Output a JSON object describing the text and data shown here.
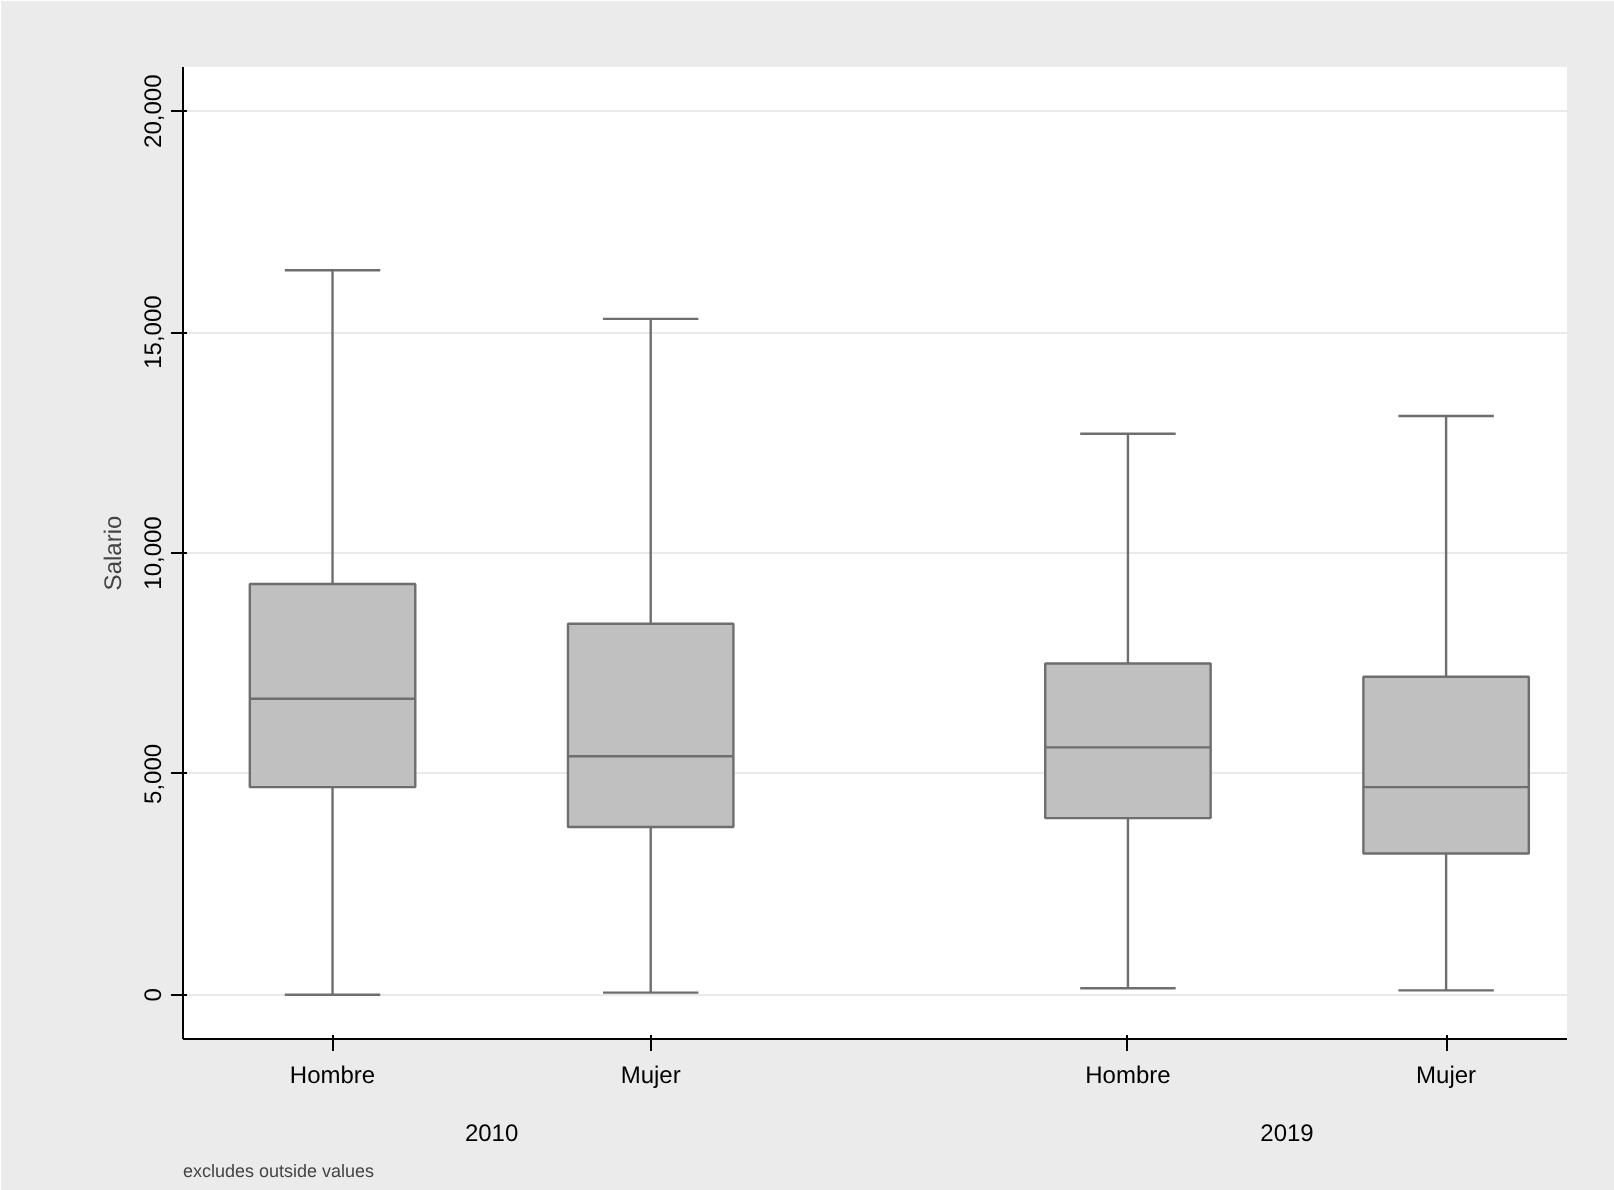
{
  "chart_data": {
    "type": "box",
    "ylabel": "Salario",
    "categories": [
      "Hombre",
      "Mujer",
      "Hombre",
      "Mujer"
    ],
    "boxes": [
      {
        "low": 0,
        "q1": 4700,
        "median": 6700,
        "q3": 9300,
        "high": 16400
      },
      {
        "low": 50,
        "q1": 3800,
        "median": 5400,
        "q3": 8400,
        "high": 15300
      },
      {
        "low": 150,
        "q1": 4000,
        "median": 5600,
        "q3": 7500,
        "high": 12700
      },
      {
        "low": 100,
        "q1": 3200,
        "median": 4700,
        "q3": 7200,
        "high": 13100
      }
    ],
    "color": "#c0c0c0",
    "ylim": [
      -1000,
      21000
    ],
    "yticks": [
      0,
      {
        "value": 5000,
        "label": "5,000"
      },
      {
        "value": 10000,
        "label": "10,000"
      },
      {
        "value": 15000,
        "label": "15,000"
      },
      {
        "value": 20000,
        "label": "20,000"
      }
    ],
    "grid": "y",
    "annotations": [
      "2010",
      "2019",
      "excludes outside values"
    ]
  }
}
